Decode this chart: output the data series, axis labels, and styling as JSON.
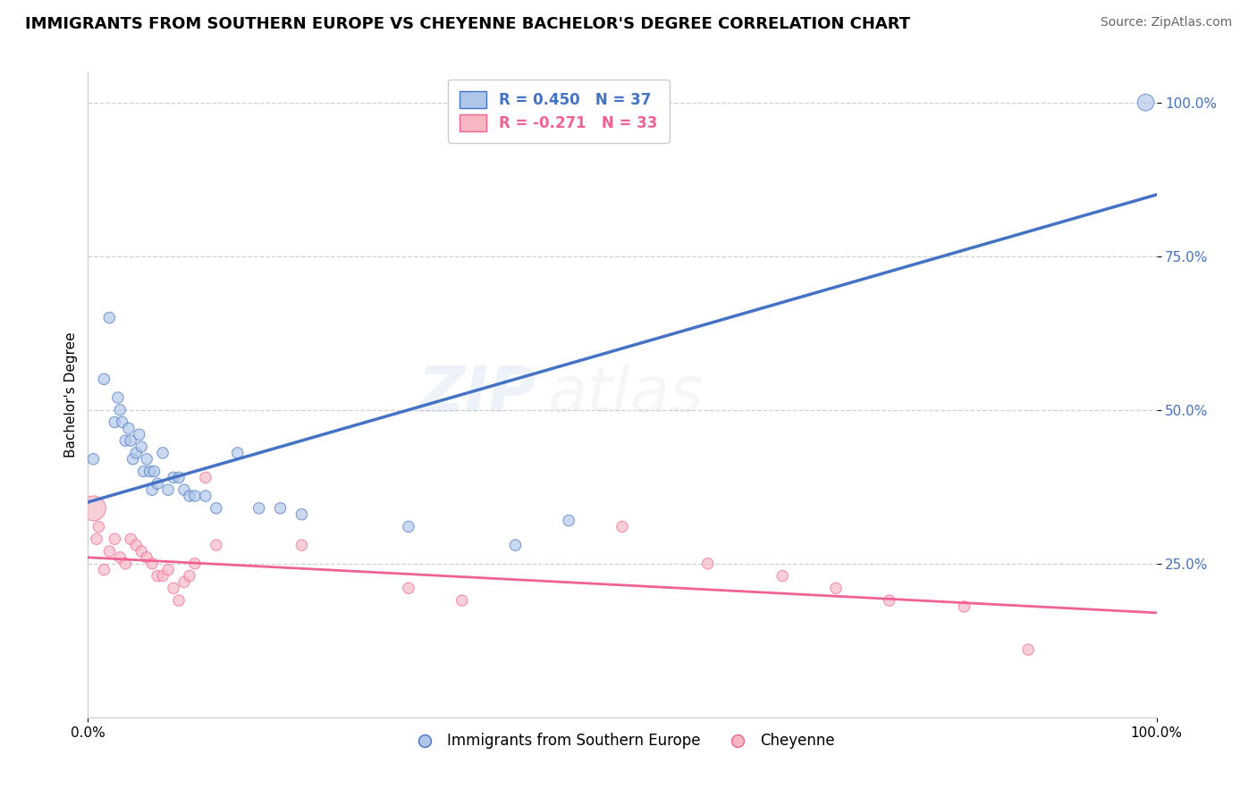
{
  "title": "IMMIGRANTS FROM SOUTHERN EUROPE VS CHEYENNE BACHELOR'S DEGREE CORRELATION CHART",
  "source": "Source: ZipAtlas.com",
  "ylabel": "Bachelor's Degree",
  "watermark_zip": "ZIP",
  "watermark_atlas": "atlas",
  "legend_blue_label": "Immigrants from Southern Europe",
  "legend_pink_label": "Cheyenne",
  "legend_blue_r": "R = 0.450",
  "legend_blue_n": "N = 37",
  "legend_pink_r": "R = -0.271",
  "legend_pink_n": "N = 33",
  "blue_color": "#aec6e8",
  "pink_color": "#f7b6c2",
  "blue_line_color": "#4472c4",
  "pink_line_color": "#f06292",
  "background_color": "#ffffff",
  "grid_color": "#d0d0d0",
  "blue_points_x": [
    0.5,
    1.5,
    2.0,
    2.5,
    2.8,
    3.0,
    3.2,
    3.5,
    3.8,
    4.0,
    4.2,
    4.5,
    4.8,
    5.0,
    5.2,
    5.5,
    5.8,
    6.0,
    6.2,
    6.5,
    7.0,
    7.5,
    8.0,
    8.5,
    9.0,
    9.5,
    10.0,
    11.0,
    12.0,
    14.0,
    16.0,
    18.0,
    20.0,
    30.0,
    40.0,
    45.0,
    99.0
  ],
  "blue_points_y": [
    42,
    55,
    65,
    48,
    52,
    50,
    48,
    45,
    47,
    45,
    42,
    43,
    46,
    44,
    40,
    42,
    40,
    37,
    40,
    38,
    43,
    37,
    39,
    39,
    37,
    36,
    36,
    36,
    34,
    43,
    34,
    34,
    33,
    31,
    28,
    32,
    100
  ],
  "blue_points_size": [
    80,
    80,
    80,
    80,
    80,
    80,
    80,
    80,
    80,
    80,
    80,
    80,
    80,
    80,
    80,
    80,
    80,
    80,
    80,
    80,
    80,
    80,
    80,
    80,
    80,
    80,
    80,
    80,
    80,
    80,
    80,
    80,
    80,
    80,
    80,
    80,
    180
  ],
  "pink_points_x": [
    0.5,
    0.8,
    1.0,
    1.5,
    2.0,
    2.5,
    3.0,
    3.5,
    4.0,
    4.5,
    5.0,
    5.5,
    6.0,
    6.5,
    7.0,
    7.5,
    8.0,
    8.5,
    9.0,
    9.5,
    10.0,
    11.0,
    12.0,
    20.0,
    30.0,
    35.0,
    50.0,
    58.0,
    65.0,
    70.0,
    75.0,
    82.0,
    88.0
  ],
  "pink_points_y": [
    34,
    29,
    31,
    24,
    27,
    29,
    26,
    25,
    29,
    28,
    27,
    26,
    25,
    23,
    23,
    24,
    21,
    19,
    22,
    23,
    25,
    39,
    28,
    28,
    21,
    19,
    31,
    25,
    23,
    21,
    19,
    18,
    11
  ],
  "pink_points_size": [
    400,
    80,
    80,
    80,
    80,
    80,
    80,
    80,
    80,
    80,
    80,
    80,
    80,
    80,
    80,
    80,
    80,
    80,
    80,
    80,
    80,
    80,
    80,
    80,
    80,
    80,
    80,
    80,
    80,
    80,
    80,
    80,
    80
  ],
  "xlim": [
    0,
    100
  ],
  "ylim": [
    0,
    105
  ],
  "yticks": [
    25,
    50,
    75,
    100
  ],
  "ytick_labels": [
    "25.0%",
    "50.0%",
    "75.0%",
    "100.0%"
  ],
  "xticks": [
    0,
    100
  ],
  "xtick_labels": [
    "0.0%",
    "100.0%"
  ],
  "blue_trend_y_start": 35,
  "blue_trend_y_end": 85,
  "pink_trend_y_start": 26,
  "pink_trend_y_end": 17,
  "title_fontsize": 13,
  "axis_label_fontsize": 11,
  "tick_fontsize": 11,
  "legend_fontsize": 12,
  "source_fontsize": 10,
  "watermark_fontsize_zip": 52,
  "watermark_fontsize_atlas": 52,
  "watermark_alpha": 0.15,
  "watermark_color_zip": "#8ab4d8",
  "watermark_color_atlas": "#c8c8c8"
}
